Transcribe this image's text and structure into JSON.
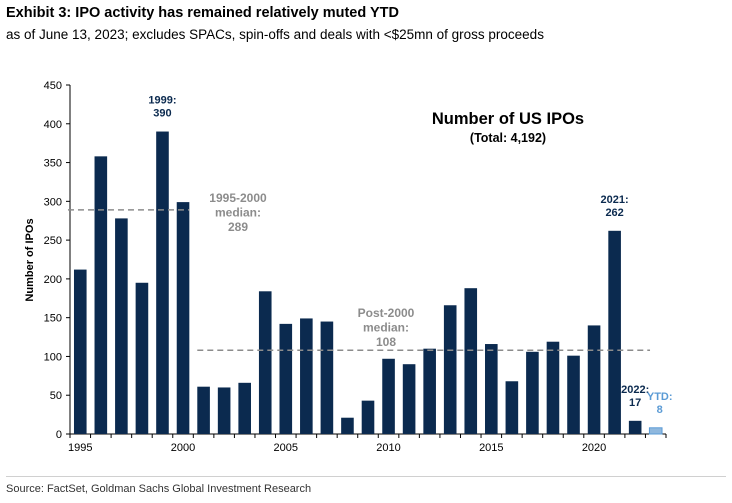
{
  "header": {
    "title": "Exhibit 3: IPO activity has remained relatively muted YTD",
    "subtitle": "as of June 13, 2023; excludes SPACs, spin-offs and deals with <$25mn of gross proceeds"
  },
  "footer": {
    "source": "Source: FactSet, Goldman Sachs Global Investment Research"
  },
  "colors": {
    "bar": "#0b2a4f",
    "ytd_bar": "#8fb8de",
    "ytd_text": "#5b9bd5",
    "median_line": "#8c8c8c",
    "median_text": "#8c8c8c",
    "axis": "#000000"
  },
  "chart_data": {
    "type": "bar",
    "title": "Number of US IPOs",
    "subtitle": "(Total: 4,192)",
    "xlabel": "",
    "ylabel": "Number of IPOs",
    "ylim": [
      0,
      450
    ],
    "yticks": [
      0,
      50,
      100,
      150,
      200,
      250,
      300,
      350,
      400,
      450
    ],
    "xtick_labels": [
      "1995",
      "2000",
      "2005",
      "2010",
      "2015",
      "2020"
    ],
    "grid": false,
    "categories": [
      "1995",
      "1996",
      "1997",
      "1998",
      "1999",
      "2000",
      "2001",
      "2002",
      "2003",
      "2004",
      "2005",
      "2006",
      "2007",
      "2008",
      "2009",
      "2010",
      "2011",
      "2012",
      "2013",
      "2014",
      "2015",
      "2016",
      "2017",
      "2018",
      "2019",
      "2020",
      "2021",
      "2022",
      "2023 YTD"
    ],
    "values": [
      212,
      358,
      278,
      195,
      390,
      299,
      61,
      60,
      66,
      184,
      142,
      149,
      145,
      21,
      43,
      97,
      90,
      110,
      166,
      188,
      116,
      68,
      106,
      119,
      101,
      140,
      262,
      17,
      8
    ],
    "highlight_index": 28,
    "medians": [
      {
        "label_line1": "1995-2000",
        "label_line2": "median:",
        "label_line3": "289",
        "value": 289,
        "from": "1995",
        "to": "2000"
      },
      {
        "label_line1": "Post-2000",
        "label_line2": "median:",
        "label_line3": "108",
        "value": 108,
        "from": "2001",
        "to": "2023 YTD"
      }
    ],
    "annotations": [
      {
        "line1": "1999:",
        "line2": "390",
        "category": "1999"
      },
      {
        "line1": "2021:",
        "line2": "262",
        "category": "2021"
      },
      {
        "line1": "2022:",
        "line2": "17",
        "category": "2022"
      },
      {
        "line1": "YTD:",
        "line2": "8",
        "category": "2023 YTD"
      }
    ]
  }
}
